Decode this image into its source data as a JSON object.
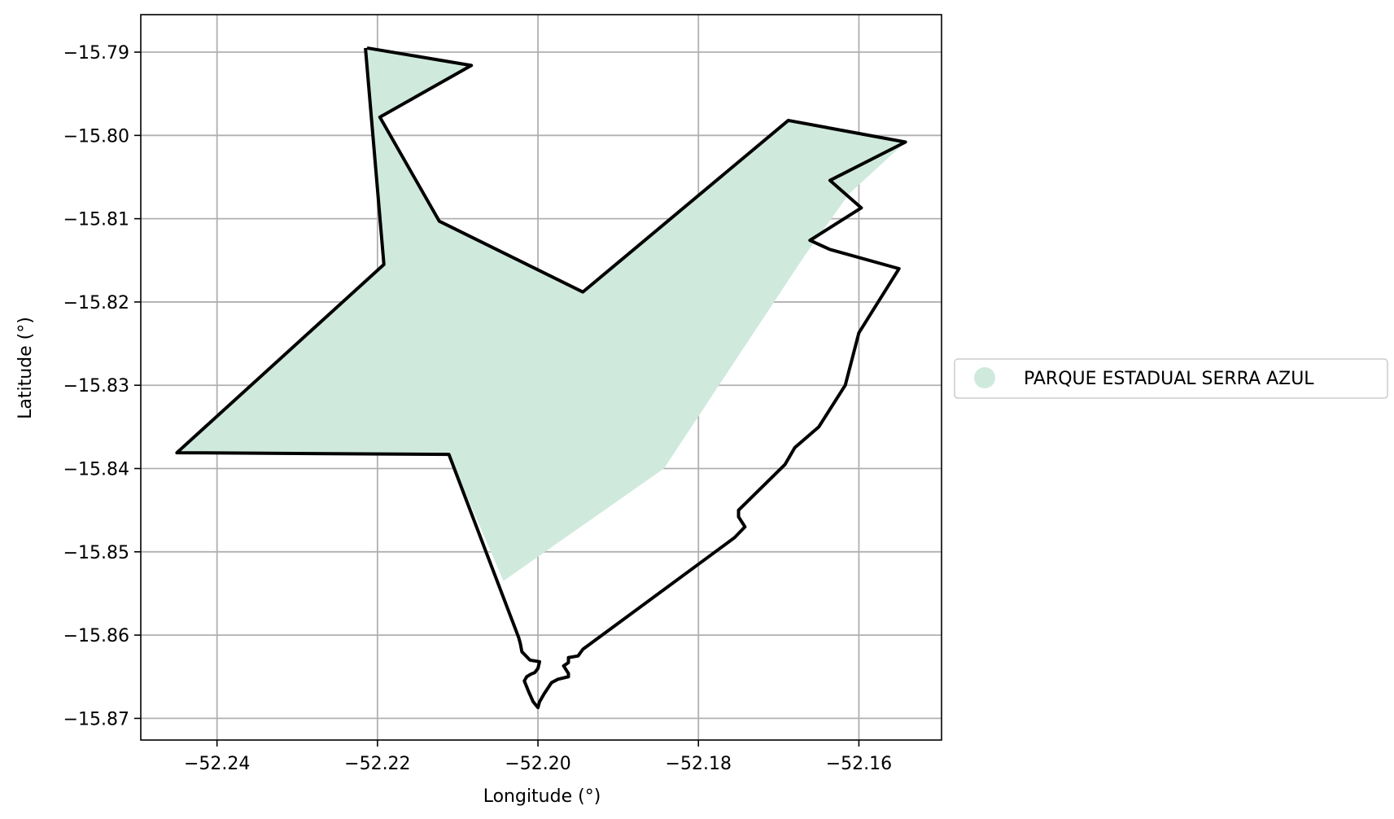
{
  "map": {
    "xlabel": "Longitude (°)",
    "ylabel": "Latitude (°)",
    "xlim": [
      -52.2495,
      -52.1497
    ],
    "ylim": [
      -15.8726,
      -15.7855
    ],
    "x_ticks": [
      {
        "value": -52.24,
        "label": "−52.24"
      },
      {
        "value": -52.22,
        "label": "−52.22"
      },
      {
        "value": -52.2,
        "label": "−52.20"
      },
      {
        "value": -52.18,
        "label": "−52.18"
      },
      {
        "value": -52.16,
        "label": "−52.16"
      }
    ],
    "y_ticks": [
      {
        "value": -15.79,
        "label": "−15.79"
      },
      {
        "value": -15.8,
        "label": "−15.80"
      },
      {
        "value": -15.81,
        "label": "−15.81"
      },
      {
        "value": -15.82,
        "label": "−15.82"
      },
      {
        "value": -15.83,
        "label": "−15.83"
      },
      {
        "value": -15.84,
        "label": "−15.84"
      },
      {
        "value": -15.85,
        "label": "−15.85"
      },
      {
        "value": -15.86,
        "label": "−15.86"
      },
      {
        "value": -15.87,
        "label": "−15.87"
      }
    ],
    "grid": true,
    "legend": {
      "placement": "right-outside",
      "label": "PARQUE ESTADUAL SERRA AZUL"
    },
    "colors": {
      "fill": "#cfeadd",
      "outline": "#000000",
      "grid": "#b0b0b0",
      "frame": "#000000"
    },
    "filled_area": [
      [
        -52.2213,
        -15.7897
      ],
      [
        -52.2083,
        -15.7916
      ],
      [
        -52.2197,
        -15.7978
      ],
      [
        -52.2123,
        -15.8103
      ],
      [
        -52.1944,
        -15.8188
      ],
      [
        -52.1688,
        -15.7982
      ],
      [
        -52.1542,
        -15.8008
      ],
      [
        -52.1612,
        -15.807
      ],
      [
        -52.1668,
        -15.8145
      ],
      [
        -52.1843,
        -15.84
      ],
      [
        -52.2043,
        -15.8535
      ],
      [
        -52.2111,
        -15.8383
      ],
      [
        -52.245,
        -15.8381
      ],
      [
        -52.2192,
        -15.8155
      ]
    ],
    "outline": [
      [
        -52.2213,
        -15.7895
      ],
      [
        -52.2083,
        -15.7916
      ],
      [
        -52.2197,
        -15.7978
      ],
      [
        -52.2123,
        -15.8103
      ],
      [
        -52.1944,
        -15.8188
      ],
      [
        -52.1688,
        -15.7982
      ],
      [
        -52.1542,
        -15.8008
      ],
      [
        -52.1636,
        -15.8054
      ],
      [
        -52.1597,
        -15.8087
      ],
      [
        -52.1661,
        -15.8126
      ],
      [
        -52.1636,
        -15.8137
      ],
      [
        -52.155,
        -15.816
      ],
      [
        -52.16,
        -15.8237
      ],
      [
        -52.1617,
        -15.83
      ],
      [
        -52.165,
        -15.835
      ],
      [
        -52.168,
        -15.8375
      ],
      [
        -52.1692,
        -15.8395
      ],
      [
        -52.175,
        -15.845
      ],
      [
        -52.175,
        -15.8458
      ],
      [
        -52.1742,
        -15.847
      ],
      [
        -52.1755,
        -15.8483
      ],
      [
        -52.1944,
        -15.8617
      ],
      [
        -52.195,
        -15.8625
      ],
      [
        -52.1962,
        -15.8627
      ],
      [
        -52.1962,
        -15.8633
      ],
      [
        -52.1968,
        -15.8637
      ],
      [
        -52.1962,
        -15.8646
      ],
      [
        -52.1962,
        -15.865
      ],
      [
        -52.1975,
        -15.8653
      ],
      [
        -52.1983,
        -15.8657
      ],
      [
        -52.1992,
        -15.867
      ],
      [
        -52.1998,
        -15.868
      ],
      [
        -52.2,
        -15.8687
      ],
      [
        -52.2006,
        -15.868
      ],
      [
        -52.2012,
        -15.8667
      ],
      [
        -52.2017,
        -15.8655
      ],
      [
        -52.2014,
        -15.865
      ],
      [
        -52.2009,
        -15.8647
      ],
      [
        -52.2004,
        -15.8645
      ],
      [
        -52.2,
        -15.864
      ],
      [
        -52.1998,
        -15.8632
      ],
      [
        -52.201,
        -15.863
      ],
      [
        -52.202,
        -15.862
      ],
      [
        -52.2022,
        -15.861
      ],
      [
        -52.2024,
        -15.8603
      ],
      [
        -52.2111,
        -15.8383
      ],
      [
        -52.245,
        -15.8381
      ],
      [
        -52.2192,
        -15.8155
      ],
      [
        -52.2215,
        -15.7895
      ]
    ]
  }
}
